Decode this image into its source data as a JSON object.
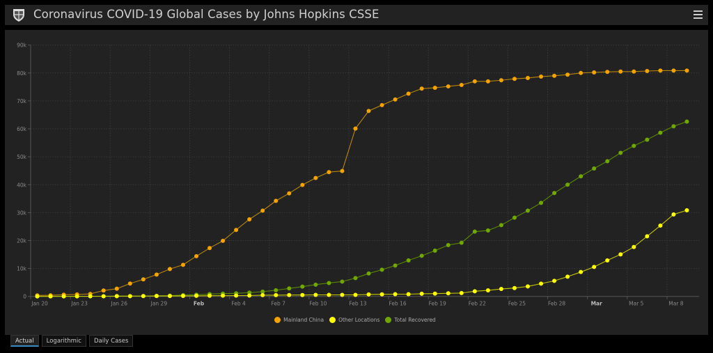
{
  "header": {
    "title": "Coronavirus COVID-19 Global Cases by Johns Hopkins CSSE",
    "logo_icon": "university-shield-logo",
    "menu_icon": "hamburger-menu-icon"
  },
  "tabs": [
    {
      "label": "Actual",
      "active": true
    },
    {
      "label": "Logarithmic",
      "active": false
    },
    {
      "label": "Daily Cases",
      "active": false
    }
  ],
  "chart_data": {
    "type": "line",
    "title": "",
    "xlabel": "",
    "ylabel": "",
    "ylim": [
      0,
      90000
    ],
    "grid": true,
    "legend_placement": "bottom",
    "y_ticks": [
      "0",
      "10k",
      "20k",
      "30k",
      "40k",
      "50k",
      "60k",
      "70k",
      "80k",
      "90k"
    ],
    "x_ticks": [
      {
        "label": "Jan 20",
        "bold": false
      },
      {
        "label": "Jan 23",
        "bold": false
      },
      {
        "label": "Jan 26",
        "bold": false
      },
      {
        "label": "Jan 29",
        "bold": false
      },
      {
        "label": "Feb",
        "bold": true
      },
      {
        "label": "Feb 4",
        "bold": false
      },
      {
        "label": "Feb 7",
        "bold": false
      },
      {
        "label": "Feb 10",
        "bold": false
      },
      {
        "label": "Feb 13",
        "bold": false
      },
      {
        "label": "Feb 16",
        "bold": false
      },
      {
        "label": "Feb 19",
        "bold": false
      },
      {
        "label": "Feb 22",
        "bold": false
      },
      {
        "label": "Feb 25",
        "bold": false
      },
      {
        "label": "Feb 28",
        "bold": false
      },
      {
        "label": "Mar",
        "bold": true
      },
      {
        "label": "Mar 5",
        "bold": false
      },
      {
        "label": "Mar 8",
        "bold": false
      }
    ],
    "series": [
      {
        "name": "Mainland China",
        "color": "#f5a300",
        "line_color": "#b8860b",
        "values": [
          350,
          400,
          600,
          700,
          900,
          2100,
          2750,
          4600,
          6100,
          7800,
          9800,
          11300,
          14400,
          17300,
          19900,
          23800,
          27600,
          30700,
          34200,
          36900,
          39900,
          42400,
          44500,
          44900,
          60100,
          66400,
          68500,
          70500,
          72600,
          74400,
          74700,
          75200,
          75700,
          77000,
          77000,
          77400,
          77900,
          78200,
          78700,
          79000,
          79400,
          80000,
          80200,
          80400,
          80500,
          80500,
          80700,
          80850,
          80850,
          80850
        ]
      },
      {
        "name": "Other Locations",
        "color": "#ffff00",
        "line_color": "#c8c800",
        "values": [
          10,
          10,
          20,
          30,
          40,
          50,
          70,
          90,
          110,
          130,
          150,
          170,
          200,
          240,
          270,
          300,
          300,
          450,
          450,
          500,
          500,
          550,
          550,
          550,
          550,
          700,
          750,
          800,
          800,
          950,
          1000,
          1100,
          1200,
          1830,
          2160,
          2660,
          2990,
          3570,
          4570,
          5560,
          7060,
          8730,
          10560,
          12880,
          15040,
          17700,
          21520,
          25350,
          29340,
          30840
        ]
      },
      {
        "name": "Total Recovered",
        "color": "#70a800",
        "line_color": "#5a8a00",
        "values": [
          0,
          30,
          30,
          40,
          50,
          60,
          100,
          120,
          140,
          210,
          280,
          460,
          610,
          840,
          1000,
          1100,
          1350,
          1700,
          2200,
          2850,
          3500,
          4200,
          4800,
          5300,
          6550,
          8200,
          9550,
          11050,
          12900,
          14550,
          16380,
          18370,
          19200,
          23200,
          23600,
          25500,
          28200,
          30700,
          33500,
          37000,
          40000,
          43000,
          45800,
          48400,
          51400,
          53900,
          56100,
          58600,
          60900,
          62600
        ]
      }
    ]
  }
}
